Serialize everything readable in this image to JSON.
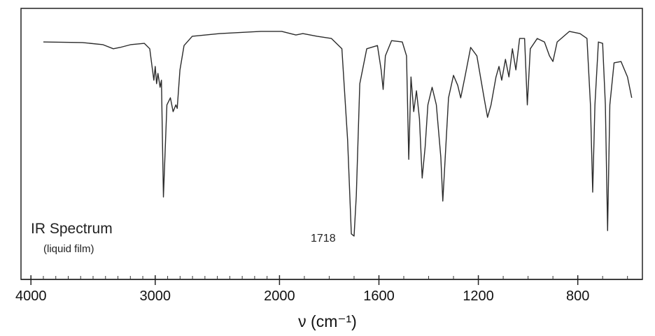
{
  "chart_data": {
    "type": "line",
    "xlabel": "ν (cm⁻¹)",
    "annotations": [
      "IR Spectrum",
      "(liquid film)",
      "1718"
    ],
    "color": "#2b2b2b",
    "xlim": [
      4080,
      540
    ],
    "xscale": {
      "break": 2000,
      "factor": 2
    },
    "xticks": [
      4000,
      3000,
      2000,
      1600,
      1200,
      800
    ],
    "xminor_ticks": [
      3900,
      3800,
      3700,
      3600,
      3500,
      3400,
      3300,
      3200,
      3100,
      2900,
      2800,
      2700,
      2600,
      2500,
      2400,
      2300,
      2200,
      2100,
      1900,
      1800,
      1700,
      1500,
      1400,
      1300,
      1100,
      1000,
      900,
      700,
      600
    ],
    "ylim": [
      0,
      100
    ],
    "x": [
      3900,
      3586,
      3420,
      3337,
      3282,
      3199,
      3088,
      3044,
      3022,
      3011,
      3000,
      2989,
      2978,
      2961,
      2950,
      2934,
      2923,
      2906,
      2878,
      2856,
      2834,
      2823,
      2801,
      2768,
      2702,
      2481,
      2149,
      1991,
      1934,
      1906,
      1849,
      1791,
      1749,
      1726,
      1711,
      1700,
      1691,
      1677,
      1649,
      1606,
      1591,
      1583,
      1574,
      1549,
      1506,
      1489,
      1480,
      1471,
      1460,
      1449,
      1437,
      1426,
      1414,
      1403,
      1386,
      1369,
      1351,
      1343,
      1334,
      1320,
      1300,
      1283,
      1271,
      1254,
      1231,
      1206,
      1177,
      1163,
      1149,
      1129,
      1117,
      1106,
      1091,
      1077,
      1063,
      1049,
      1034,
      1014,
      1003,
      991,
      963,
      934,
      914,
      900,
      883,
      834,
      791,
      763,
      749,
      740,
      731,
      717,
      700,
      689,
      680,
      671,
      654,
      626,
      600,
      583
    ],
    "values": [
      87.6,
      87.4,
      86.6,
      85.1,
      85.6,
      86.6,
      87.1,
      85.1,
      77.3,
      73.5,
      78.6,
      72.2,
      76.0,
      70.9,
      73.5,
      30.4,
      43.8,
      64.4,
      67.0,
      61.9,
      64.4,
      63.1,
      77.3,
      86.3,
      89.7,
      90.7,
      91.5,
      91.5,
      90.2,
      90.7,
      89.7,
      88.9,
      85.1,
      51.5,
      16.8,
      16.0,
      30.9,
      72.2,
      85.1,
      86.3,
      77.3,
      70.1,
      82.5,
      88.1,
      87.6,
      82.5,
      44.3,
      74.7,
      61.9,
      69.6,
      59.3,
      37.4,
      49.0,
      64.4,
      70.9,
      64.4,
      45.1,
      28.9,
      43.8,
      67.0,
      75.3,
      71.6,
      67.0,
      74.7,
      85.6,
      82.5,
      67.0,
      59.8,
      64.4,
      74.7,
      78.6,
      73.5,
      81.2,
      74.7,
      85.1,
      77.3,
      88.9,
      88.9,
      64.4,
      85.1,
      88.9,
      87.6,
      82.5,
      80.4,
      87.6,
      91.5,
      90.7,
      88.9,
      64.4,
      32.2,
      64.4,
      87.6,
      87.1,
      64.4,
      18.0,
      64.4,
      79.9,
      80.4,
      74.7,
      67.0
    ]
  }
}
